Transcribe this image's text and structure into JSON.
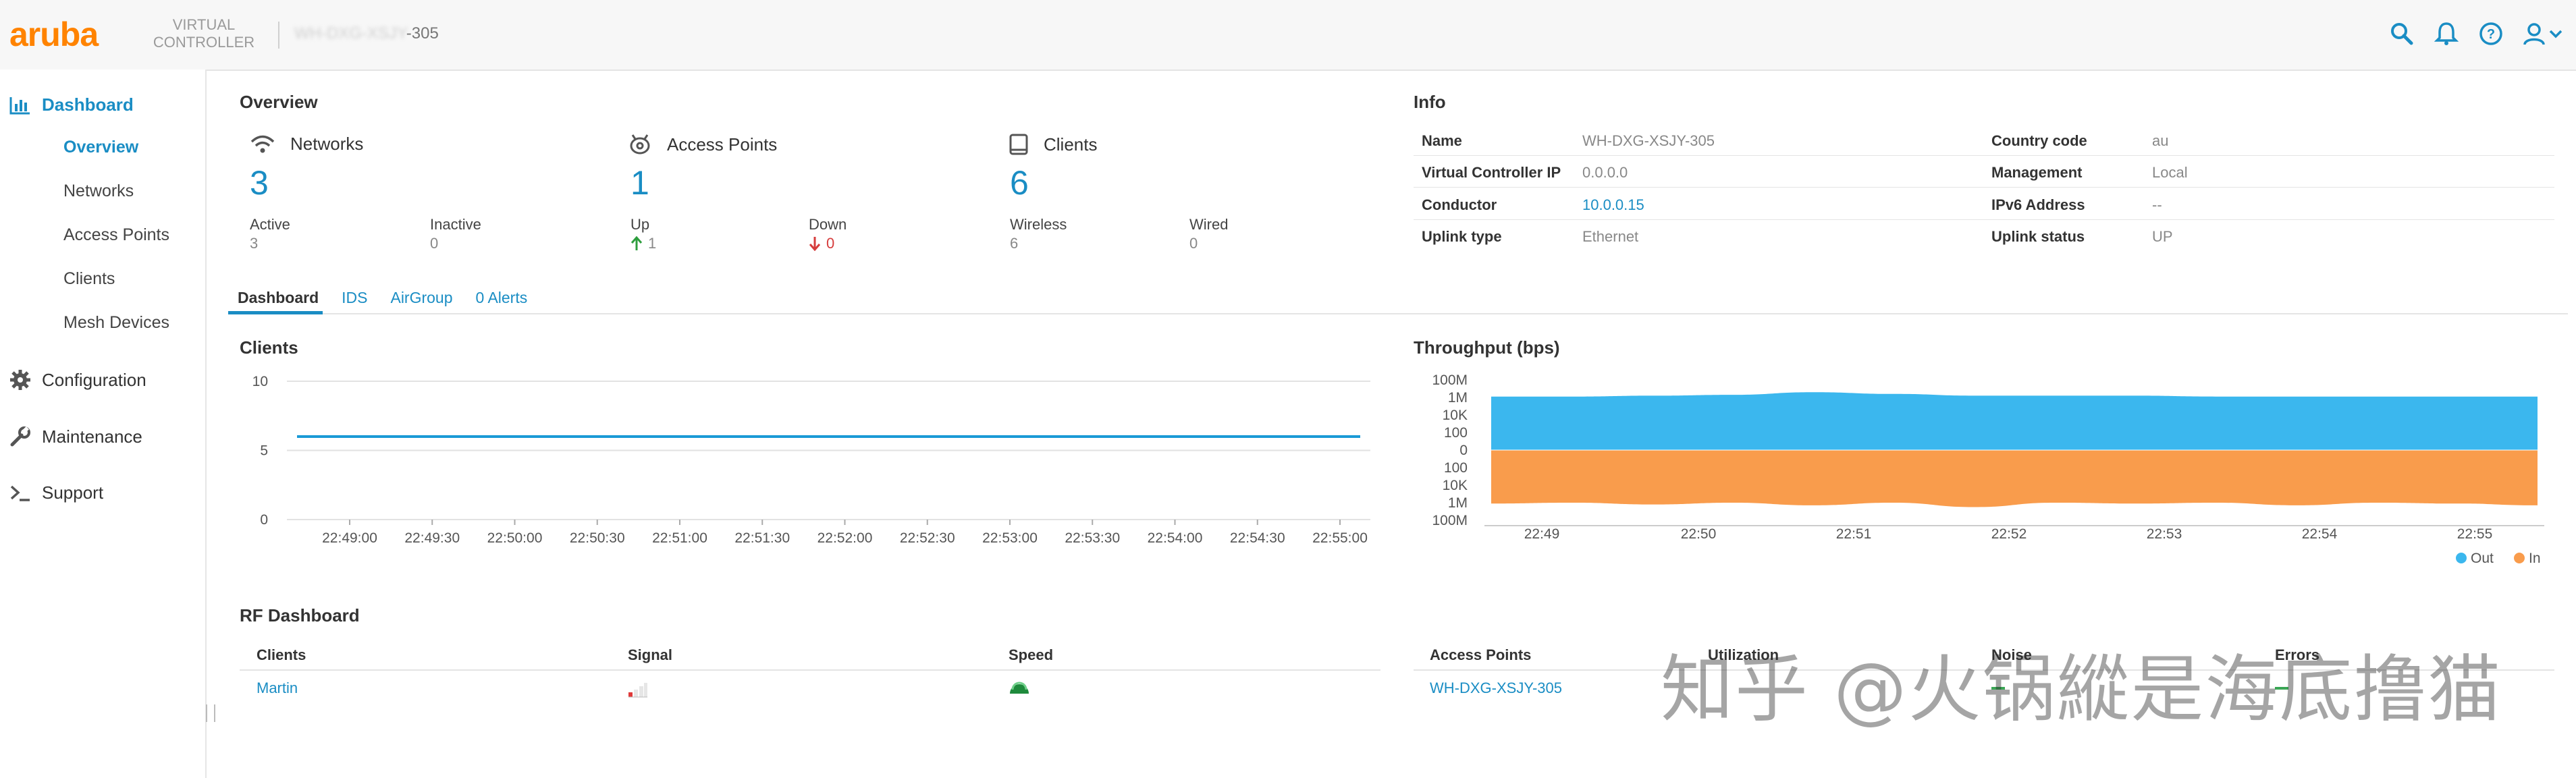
{
  "header": {
    "logo": "aruba",
    "vc_label_line1": "VIRTUAL",
    "vc_label_line2": "CONTROLLER",
    "vc_name_blurred": "WH-DXG-XSJY",
    "vc_name_suffix": "-305",
    "icons": [
      "search-icon",
      "bell-icon",
      "help-icon",
      "user-icon"
    ],
    "accent": "#1a8dc4",
    "brand": "#ff8300"
  },
  "sidebar": {
    "items": [
      {
        "label": "Dashboard",
        "icon": "bar-chart-icon",
        "active": true,
        "children": [
          {
            "label": "Overview",
            "active": true
          },
          {
            "label": "Networks"
          },
          {
            "label": "Access Points"
          },
          {
            "label": "Clients"
          },
          {
            "label": "Mesh Devices"
          }
        ]
      },
      {
        "label": "Configuration",
        "icon": "gear-icon"
      },
      {
        "label": "Maintenance",
        "icon": "wrench-icon"
      },
      {
        "label": "Support",
        "icon": "terminal-icon"
      }
    ]
  },
  "overview": {
    "title": "Overview",
    "networks": {
      "label": "Networks",
      "value": "3",
      "active_label": "Active",
      "active": "3",
      "inactive_label": "Inactive",
      "inactive": "0"
    },
    "access_points": {
      "label": "Access Points",
      "value": "1",
      "up_label": "Up",
      "up": "1",
      "down_label": "Down",
      "down": "0"
    },
    "clients": {
      "label": "Clients",
      "value": "6",
      "wireless_label": "Wireless",
      "wireless": "6",
      "wired_label": "Wired",
      "wired": "0"
    }
  },
  "info": {
    "title": "Info",
    "rows": [
      {
        "l1": "Name",
        "v1": "WH-DXG-XSJY-305",
        "l2": "Country code",
        "v2": "au"
      },
      {
        "l1": "Virtual Controller IP",
        "v1": "0.0.0.0",
        "l2": "Management",
        "v2": "Local"
      },
      {
        "l1": "Conductor",
        "v1": "10.0.0.15",
        "l2": "IPv6 Address",
        "v2": "--"
      },
      {
        "l1": "Uplink type",
        "v1": "Ethernet",
        "l2": "Uplink status",
        "v2": "UP"
      }
    ]
  },
  "tabs": [
    {
      "label": "Dashboard",
      "active": true
    },
    {
      "label": "IDS"
    },
    {
      "label": "AirGroup"
    },
    {
      "label": "0 Alerts"
    }
  ],
  "clients_chart": {
    "title": "Clients",
    "chart_data": {
      "type": "line",
      "title": "Clients",
      "ylim": [
        0,
        10
      ],
      "y_ticks": [
        "10",
        "5",
        "0"
      ],
      "x": [
        "22:49:00",
        "22:49:30",
        "22:50:00",
        "22:50:30",
        "22:51:00",
        "22:51:30",
        "22:52:00",
        "22:52:30",
        "22:53:00",
        "22:53:30",
        "22:54:00",
        "22:54:30",
        "22:55:00"
      ],
      "series": [
        {
          "values": [
            6,
            6,
            6,
            6,
            6,
            6,
            6,
            6,
            6,
            6,
            6,
            6,
            6
          ]
        }
      ],
      "color": "#1a9ad6"
    }
  },
  "throughput_chart": {
    "title": "Throughput (bps)",
    "chart_data": {
      "type": "area",
      "title": "Throughput (bps)",
      "y_ticks": [
        "100M",
        "1M",
        "10K",
        "100",
        "0",
        "100",
        "10K",
        "1M",
        "100M"
      ],
      "x": [
        "22:49",
        "22:50",
        "22:51",
        "22:52",
        "22:53",
        "22:54",
        "22:55"
      ],
      "legend_position": "bottom-right",
      "series": [
        {
          "name": "Out",
          "color": "#3bb7ee",
          "log_values": [
            6.1,
            6.1,
            6.2,
            6.3,
            6.6,
            6.4,
            6.2,
            6.2,
            6.2,
            6.1,
            6.1,
            6.1,
            6.1,
            6.1
          ]
        },
        {
          "name": "In",
          "color": "#f99c4c",
          "log_values": [
            6.1,
            6.0,
            6.2,
            6.0,
            6.3,
            6.0,
            6.5,
            6.0,
            6.1,
            6.0,
            6.3,
            6.0,
            6.1,
            6.3
          ]
        }
      ]
    }
  },
  "rf": {
    "title": "RF Dashboard",
    "clients_headers": [
      "Clients",
      "Signal",
      "Speed"
    ],
    "clients_rows": [
      {
        "name": "Martin",
        "signal_icon": "signal-bars-icon",
        "speed_icon": "speed-dot-icon"
      }
    ],
    "ap_headers": [
      "Access Points",
      "Utilization",
      "Noise",
      "Errors"
    ],
    "ap_rows": [
      {
        "name": "WH-DXG-XSJY-305"
      }
    ]
  },
  "watermark": "知乎 @火锅縱是海底撸猫"
}
